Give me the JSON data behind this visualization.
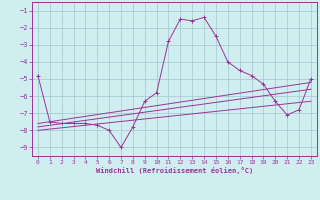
{
  "xlabel": "Windchill (Refroidissement éolien,°C)",
  "bg_color": "#d0eef0",
  "grid_color": "#a8cdd0",
  "line_color": "#993399",
  "spine_color": "#993399",
  "xlim": [
    -0.5,
    23.5
  ],
  "ylim": [
    -9.5,
    -0.5
  ],
  "yticks": [
    -1,
    -2,
    -3,
    -4,
    -5,
    -6,
    -7,
    -8,
    -9
  ],
  "xticks": [
    0,
    1,
    2,
    3,
    4,
    5,
    6,
    7,
    8,
    9,
    10,
    11,
    12,
    13,
    14,
    15,
    16,
    17,
    18,
    19,
    20,
    21,
    22,
    23
  ],
  "main_data": {
    "x": [
      0,
      1,
      2,
      3,
      4,
      5,
      6,
      7,
      8,
      9,
      10,
      11,
      12,
      13,
      14,
      15,
      16,
      17,
      18,
      19,
      20,
      21,
      22,
      23
    ],
    "y": [
      -4.8,
      -7.5,
      -7.6,
      -7.6,
      -7.6,
      -7.7,
      -8.0,
      -9.0,
      -7.8,
      -6.3,
      -5.8,
      -2.8,
      -1.5,
      -1.6,
      -1.4,
      -2.5,
      -4.0,
      -4.5,
      -4.8,
      -5.3,
      -6.3,
      -7.1,
      -6.8,
      -5.0
    ]
  },
  "trend1_data": {
    "x": [
      0,
      23
    ],
    "y": [
      -7.6,
      -5.2
    ]
  },
  "trend2_data": {
    "x": [
      0,
      23
    ],
    "y": [
      -7.8,
      -5.6
    ]
  },
  "trend3_data": {
    "x": [
      0,
      23
    ],
    "y": [
      -8.0,
      -6.3
    ]
  }
}
